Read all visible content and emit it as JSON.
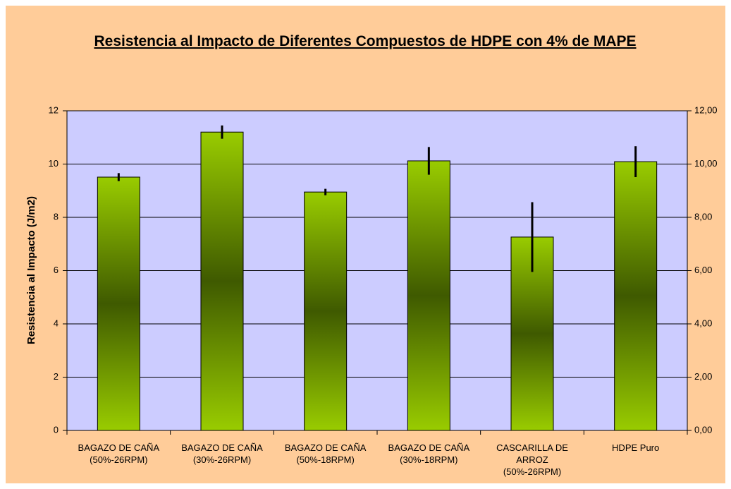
{
  "chart_data": {
    "type": "bar",
    "title": "Resistencia al Impacto de Diferentes Compuestos de HDPE con 4% de MAPE",
    "y_label": "Resistencia al Impacto (J/m2)",
    "categories": [
      "BAGAZO DE CAÑA (50%-26RPM)",
      "BAGAZO DE CAÑA (30%-26RPM)",
      "BAGAZO DE CAÑA (50%-18RPM)",
      "BAGAZO DE CAÑA (30%-18RPM)",
      "CASCARILLA DE ARROZ (50%-26RPM)",
      "HDPE Puro"
    ],
    "values": [
      9.51,
      11.2,
      8.95,
      10.12,
      7.26,
      10.09
    ],
    "errors": [
      0.15,
      0.25,
      0.12,
      0.52,
      1.31,
      0.58
    ],
    "color": "#99cc00",
    "ylim": [
      0,
      12
    ],
    "yticks": [
      0,
      2,
      4,
      6,
      8,
      10,
      12
    ],
    "y2lim": [
      0,
      12
    ],
    "y2ticks": [
      {
        "value": 0,
        "label": "0,00"
      },
      {
        "value": 2,
        "label": "2,00"
      },
      {
        "value": 4,
        "label": "4,00"
      },
      {
        "value": 6,
        "label": "6,00"
      },
      {
        "value": 8,
        "label": "8,00"
      },
      {
        "value": 10,
        "label": "10,00"
      },
      {
        "value": 12,
        "label": "12,00"
      }
    ],
    "grid": true
  }
}
